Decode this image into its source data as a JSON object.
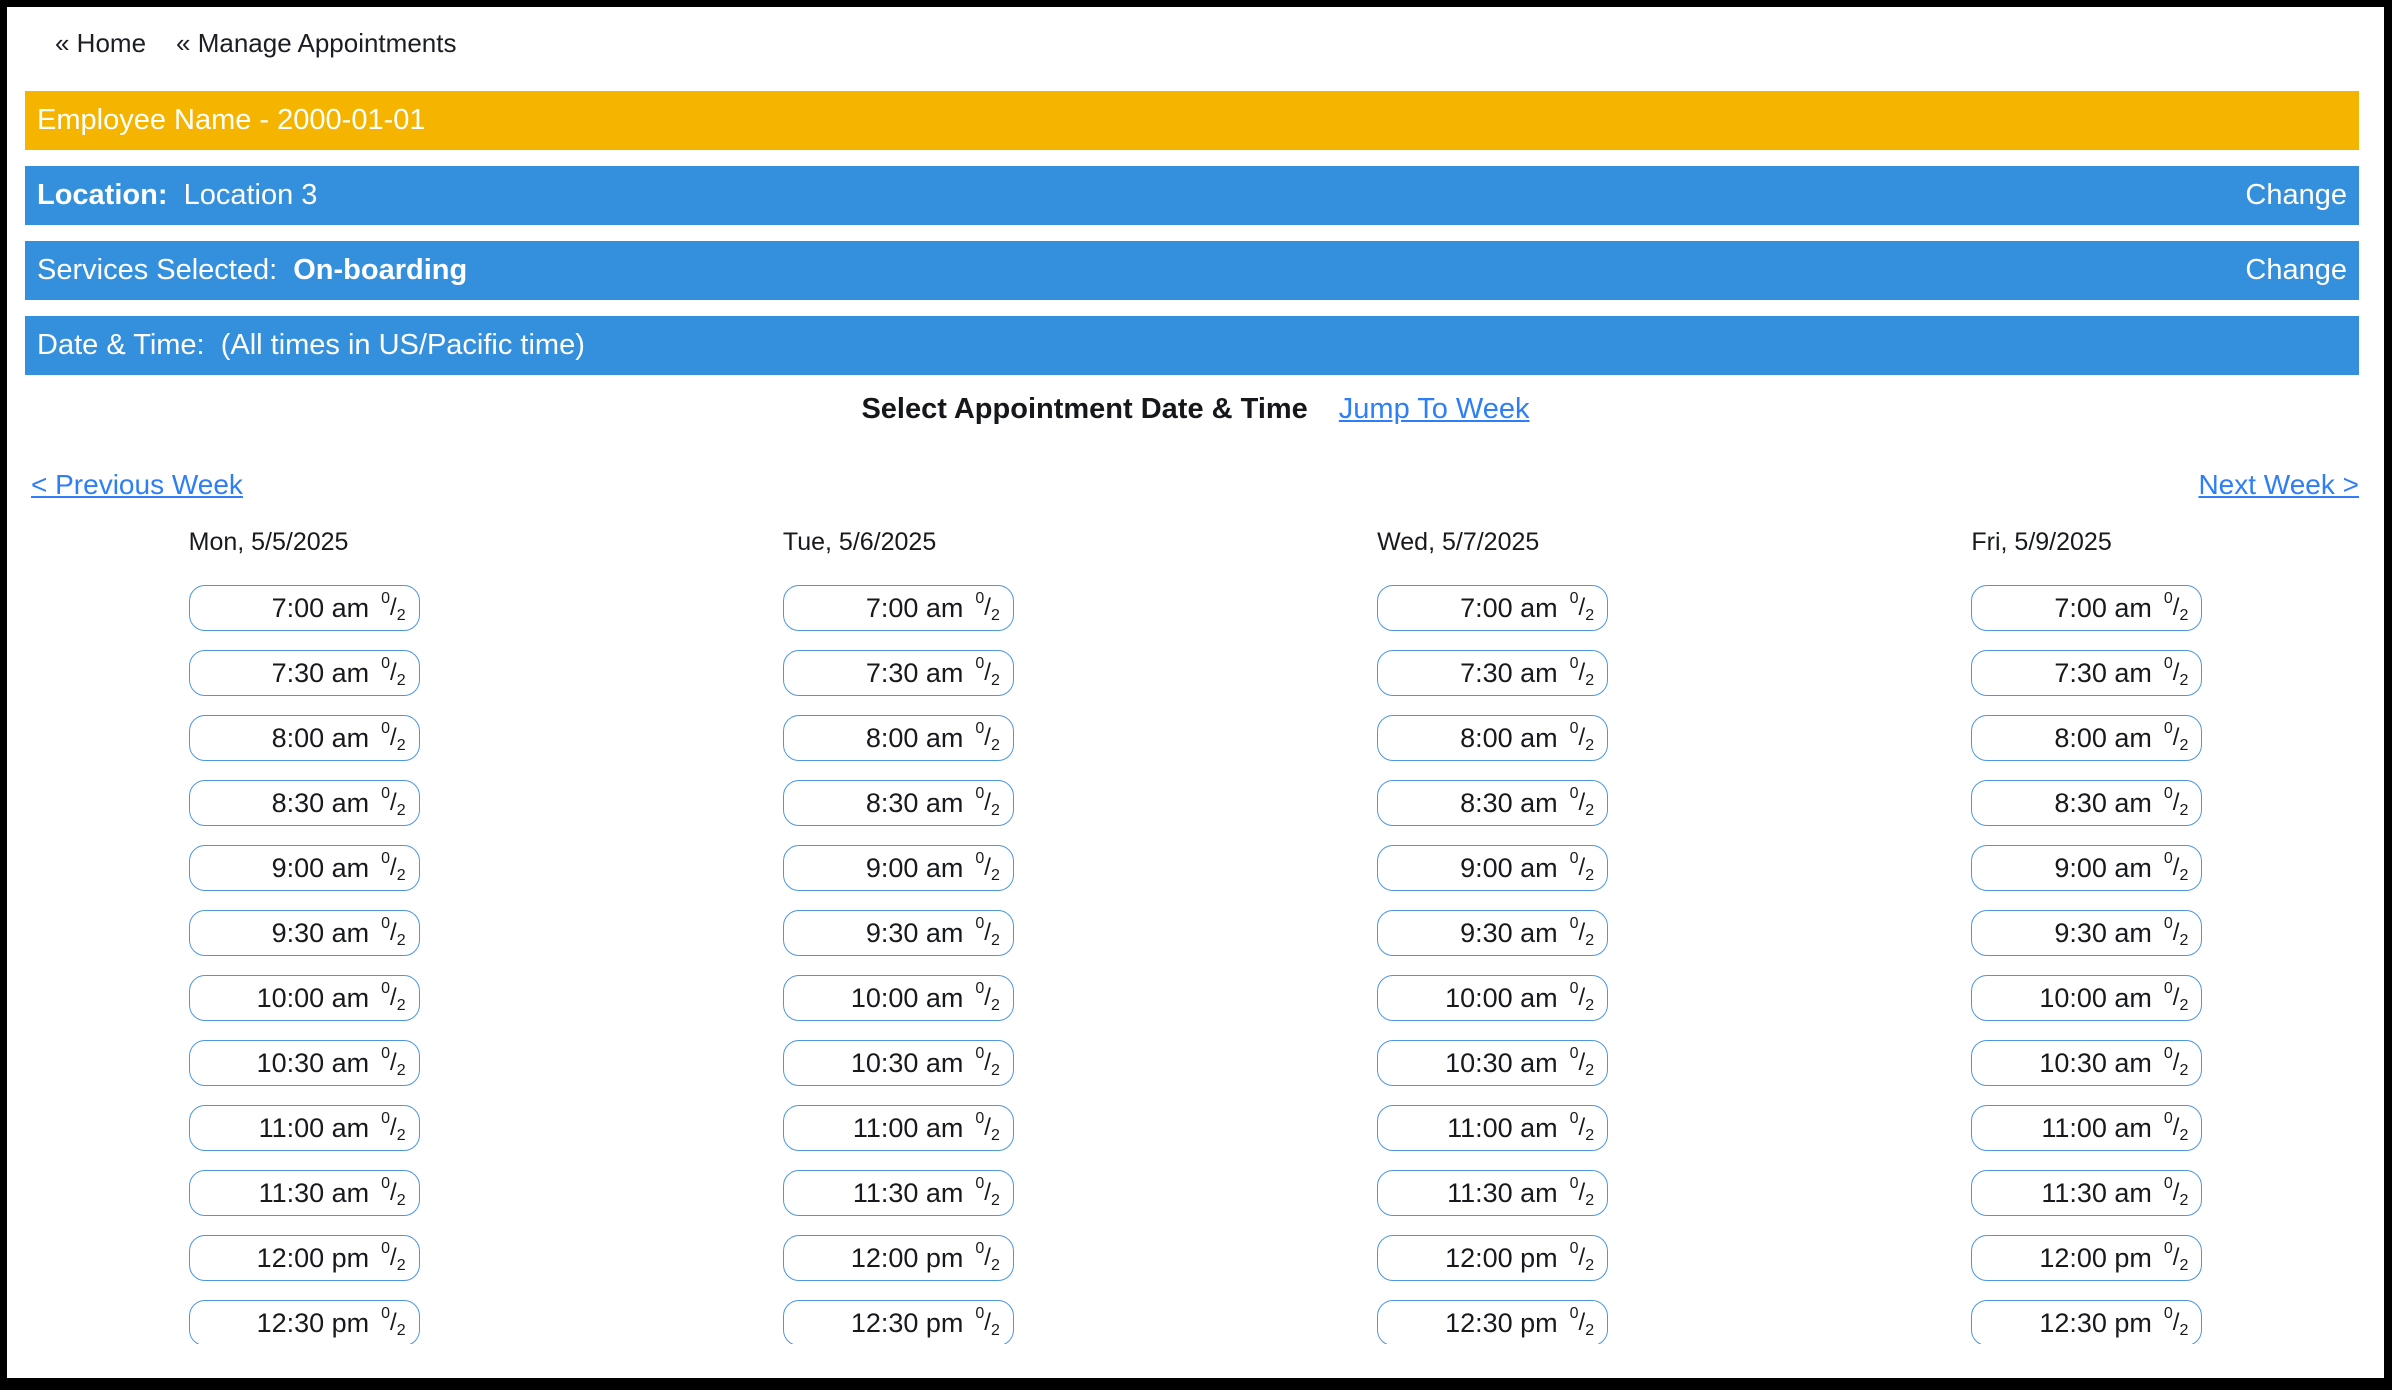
{
  "nav": {
    "home_label": "« Home",
    "manage_label": "« Manage Appointments"
  },
  "banners": {
    "employee": {
      "text": "Employee Name - 2000-01-01"
    },
    "location": {
      "label": "Location:",
      "value": "Location 3",
      "change_label": "Change"
    },
    "services": {
      "label": "Services Selected:",
      "value": "On-boarding",
      "change_label": "Change"
    },
    "datetime": {
      "label": "Date & Time:",
      "timezone_note": "(All times in US/Pacific time)"
    }
  },
  "scheduler": {
    "title": "Select Appointment Date & Time",
    "jump_to_week_label": "Jump To Week",
    "previous_week_label": "< Previous Week",
    "next_week_label": "Next Week >",
    "days": [
      {
        "label": "Mon, 5/5/2025",
        "slots": [
          {
            "time": "7:00 am",
            "booked": "0",
            "capacity": "2"
          },
          {
            "time": "7:30 am",
            "booked": "0",
            "capacity": "2"
          },
          {
            "time": "8:00 am",
            "booked": "0",
            "capacity": "2"
          },
          {
            "time": "8:30 am",
            "booked": "0",
            "capacity": "2"
          },
          {
            "time": "9:00 am",
            "booked": "0",
            "capacity": "2"
          },
          {
            "time": "9:30 am",
            "booked": "0",
            "capacity": "2"
          },
          {
            "time": "10:00 am",
            "booked": "0",
            "capacity": "2"
          },
          {
            "time": "10:30 am",
            "booked": "0",
            "capacity": "2"
          },
          {
            "time": "11:00 am",
            "booked": "0",
            "capacity": "2"
          },
          {
            "time": "11:30 am",
            "booked": "0",
            "capacity": "2"
          },
          {
            "time": "12:00 pm",
            "booked": "0",
            "capacity": "2"
          },
          {
            "time": "12:30 pm",
            "booked": "0",
            "capacity": "2"
          }
        ]
      },
      {
        "label": "Tue, 5/6/2025",
        "slots": [
          {
            "time": "7:00 am",
            "booked": "0",
            "capacity": "2"
          },
          {
            "time": "7:30 am",
            "booked": "0",
            "capacity": "2"
          },
          {
            "time": "8:00 am",
            "booked": "0",
            "capacity": "2"
          },
          {
            "time": "8:30 am",
            "booked": "0",
            "capacity": "2"
          },
          {
            "time": "9:00 am",
            "booked": "0",
            "capacity": "2"
          },
          {
            "time": "9:30 am",
            "booked": "0",
            "capacity": "2"
          },
          {
            "time": "10:00 am",
            "booked": "0",
            "capacity": "2"
          },
          {
            "time": "10:30 am",
            "booked": "0",
            "capacity": "2"
          },
          {
            "time": "11:00 am",
            "booked": "0",
            "capacity": "2"
          },
          {
            "time": "11:30 am",
            "booked": "0",
            "capacity": "2"
          },
          {
            "time": "12:00 pm",
            "booked": "0",
            "capacity": "2"
          },
          {
            "time": "12:30 pm",
            "booked": "0",
            "capacity": "2"
          }
        ]
      },
      {
        "label": "Wed, 5/7/2025",
        "slots": [
          {
            "time": "7:00 am",
            "booked": "0",
            "capacity": "2"
          },
          {
            "time": "7:30 am",
            "booked": "0",
            "capacity": "2"
          },
          {
            "time": "8:00 am",
            "booked": "0",
            "capacity": "2"
          },
          {
            "time": "8:30 am",
            "booked": "0",
            "capacity": "2"
          },
          {
            "time": "9:00 am",
            "booked": "0",
            "capacity": "2"
          },
          {
            "time": "9:30 am",
            "booked": "0",
            "capacity": "2"
          },
          {
            "time": "10:00 am",
            "booked": "0",
            "capacity": "2"
          },
          {
            "time": "10:30 am",
            "booked": "0",
            "capacity": "2"
          },
          {
            "time": "11:00 am",
            "booked": "0",
            "capacity": "2"
          },
          {
            "time": "11:30 am",
            "booked": "0",
            "capacity": "2"
          },
          {
            "time": "12:00 pm",
            "booked": "0",
            "capacity": "2"
          },
          {
            "time": "12:30 pm",
            "booked": "0",
            "capacity": "2"
          }
        ]
      },
      {
        "label": "Fri, 5/9/2025",
        "slots": [
          {
            "time": "7:00 am",
            "booked": "0",
            "capacity": "2"
          },
          {
            "time": "7:30 am",
            "booked": "0",
            "capacity": "2"
          },
          {
            "time": "8:00 am",
            "booked": "0",
            "capacity": "2"
          },
          {
            "time": "8:30 am",
            "booked": "0",
            "capacity": "2"
          },
          {
            "time": "9:00 am",
            "booked": "0",
            "capacity": "2"
          },
          {
            "time": "9:30 am",
            "booked": "0",
            "capacity": "2"
          },
          {
            "time": "10:00 am",
            "booked": "0",
            "capacity": "2"
          },
          {
            "time": "10:30 am",
            "booked": "0",
            "capacity": "2"
          },
          {
            "time": "11:00 am",
            "booked": "0",
            "capacity": "2"
          },
          {
            "time": "11:30 am",
            "booked": "0",
            "capacity": "2"
          },
          {
            "time": "12:00 pm",
            "booked": "0",
            "capacity": "2"
          },
          {
            "time": "12:30 pm",
            "booked": "0",
            "capacity": "2"
          }
        ]
      }
    ]
  },
  "colors": {
    "banner_orange": "#F4B400",
    "banner_blue": "#3490DC",
    "link_blue": "#2D7EF7",
    "slot_border": "#4E96E0",
    "frame_black": "#000000"
  }
}
